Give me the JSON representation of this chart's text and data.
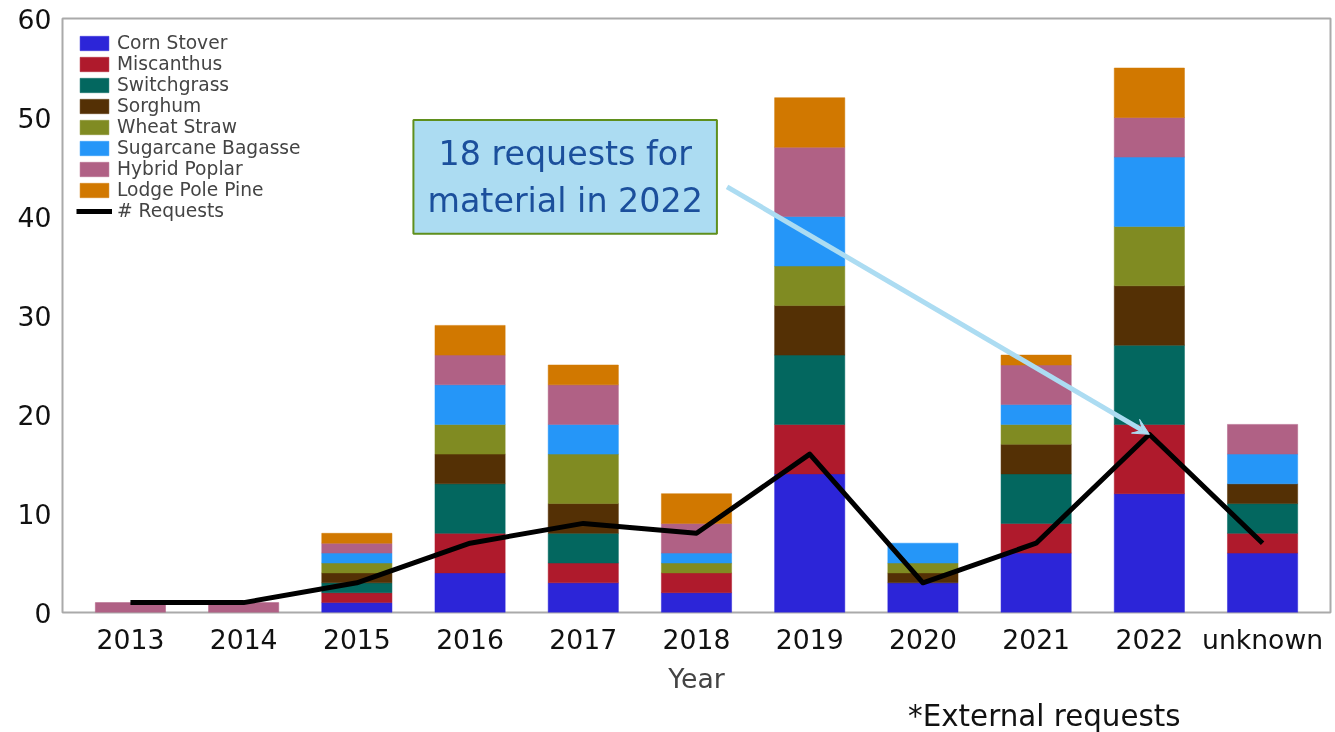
{
  "chart_data": {
    "type": "bar",
    "stacked": true,
    "xlabel": "Year",
    "categories": [
      "2013",
      "2014",
      "2015",
      "2016",
      "2017",
      "2018",
      "2019",
      "2020",
      "2021",
      "2022",
      "unknown"
    ],
    "series": [
      {
        "name": "Corn Stover",
        "color": "#2c25d8",
        "values": [
          0,
          0,
          1,
          4,
          3,
          2,
          14,
          3,
          6,
          12,
          6
        ]
      },
      {
        "name": "Miscanthus",
        "color": "#af1a2c",
        "values": [
          0,
          0,
          1,
          4,
          2,
          2,
          5,
          0,
          3,
          7,
          2
        ]
      },
      {
        "name": "Switchgrass",
        "color": "#03675f",
        "values": [
          0,
          0,
          1,
          5,
          3,
          0,
          7,
          0,
          5,
          8,
          3
        ]
      },
      {
        "name": "Sorghum",
        "color": "#543005",
        "values": [
          0,
          0,
          1,
          3,
          3,
          0,
          5,
          1,
          3,
          6,
          2
        ]
      },
      {
        "name": "Wheat Straw",
        "color": "#808b22",
        "values": [
          0,
          0,
          1,
          3,
          5,
          1,
          4,
          1,
          2,
          6,
          0
        ]
      },
      {
        "name": "Sugarcane Bagasse",
        "color": "#2596f8",
        "values": [
          0,
          0,
          1,
          4,
          3,
          1,
          5,
          2,
          2,
          7,
          3
        ]
      },
      {
        "name": "Hybrid Poplar",
        "color": "#b06185",
        "values": [
          1,
          1,
          1,
          3,
          4,
          3,
          7,
          0,
          4,
          4,
          3
        ]
      },
      {
        "name": "Lodge Pole Pine",
        "color": "#d17800",
        "values": [
          0,
          0,
          1,
          3,
          2,
          3,
          5,
          0,
          1,
          5,
          0
        ]
      },
      {
        "name": "# Requests",
        "type": "line",
        "color": "#000000",
        "values": [
          1,
          1,
          3,
          7,
          9,
          8,
          16,
          3,
          7,
          18,
          7
        ]
      }
    ],
    "ylim": [
      0,
      60
    ],
    "yticks": [
      0,
      10,
      20,
      30,
      40,
      50,
      60
    ],
    "grid": false,
    "legend": "top left",
    "annotations": [
      {
        "text": "18 requests for\nmaterial in 2022",
        "x": "2022",
        "y": 18
      },
      "*External requests"
    ]
  }
}
